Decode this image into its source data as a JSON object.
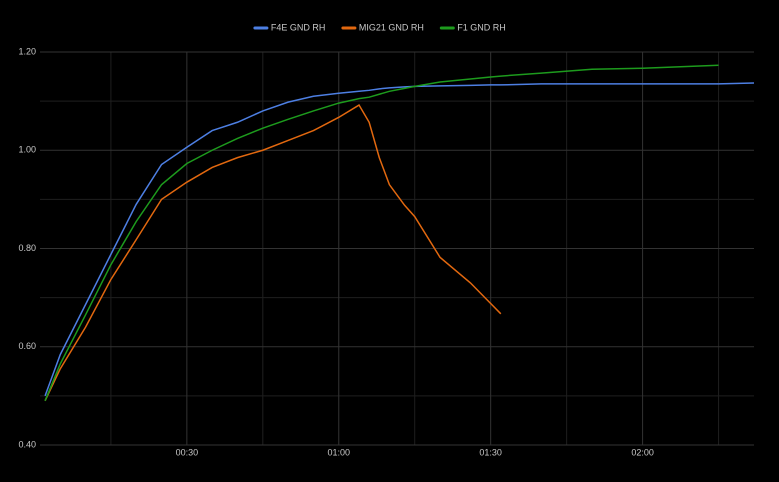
{
  "chart_data": {
    "type": "line",
    "x": [
      2,
      5,
      10,
      15,
      20,
      25,
      30,
      35,
      40,
      45,
      50,
      55,
      60,
      64,
      66,
      68,
      70,
      73,
      75,
      80,
      86,
      90,
      92,
      100,
      110,
      120,
      130,
      135,
      142
    ],
    "series": [
      {
        "name": "F4E GND RH",
        "color": "#4d7fe3",
        "values": [
          0.5,
          0.584,
          0.686,
          0.788,
          0.89,
          0.971,
          1.006,
          1.04,
          1.057,
          1.08,
          1.098,
          1.11,
          1.116,
          1.12,
          1.122,
          1.125,
          1.127,
          1.129,
          1.13,
          1.131,
          1.132,
          1.133,
          1.133,
          1.135,
          1.135,
          1.135,
          1.135,
          1.135,
          1.137
        ]
      },
      {
        "name": "MIG21 GND RH",
        "color": "#e2680f",
        "values": [
          0.49,
          0.555,
          0.64,
          0.737,
          0.818,
          0.9,
          0.935,
          0.965,
          0.985,
          1.0,
          1.02,
          1.04,
          1.067,
          1.092,
          1.057,
          0.985,
          0.93,
          0.888,
          0.865,
          0.782,
          0.73,
          0.688,
          0.667,
          null,
          null,
          null,
          null,
          null,
          null
        ]
      },
      {
        "name": "F1 GND RH",
        "color": "#1d9b1d",
        "values": [
          0.49,
          0.565,
          0.665,
          0.767,
          0.855,
          0.93,
          0.973,
          1.0,
          1.024,
          1.045,
          1.063,
          1.08,
          1.096,
          1.105,
          1.108,
          1.114,
          1.12,
          1.126,
          1.13,
          1.139,
          1.145,
          1.149,
          1.151,
          1.157,
          1.165,
          1.167,
          1.171,
          1.173,
          null
        ]
      }
    ],
    "xlim": [
      1,
      142
    ],
    "xticks": [
      {
        "value": 30,
        "label": "00:30"
      },
      {
        "value": 60,
        "label": "01:00"
      },
      {
        "value": 90,
        "label": "01:30"
      },
      {
        "value": 120,
        "label": "02:00"
      }
    ],
    "x_minor_grid": [
      15,
      45,
      75,
      105,
      135
    ],
    "ylim": [
      0.4,
      1.2
    ],
    "yticks": [
      {
        "value": 0.4,
        "label": "0.40"
      },
      {
        "value": 0.6,
        "label": "0.60"
      },
      {
        "value": 0.8,
        "label": "0.80"
      },
      {
        "value": 1.0,
        "label": "1.00"
      },
      {
        "value": 1.2,
        "label": "1.20"
      }
    ],
    "y_minor_grid": [
      0.5,
      0.7,
      0.9,
      1.1
    ],
    "grid": true,
    "legend": "top"
  }
}
